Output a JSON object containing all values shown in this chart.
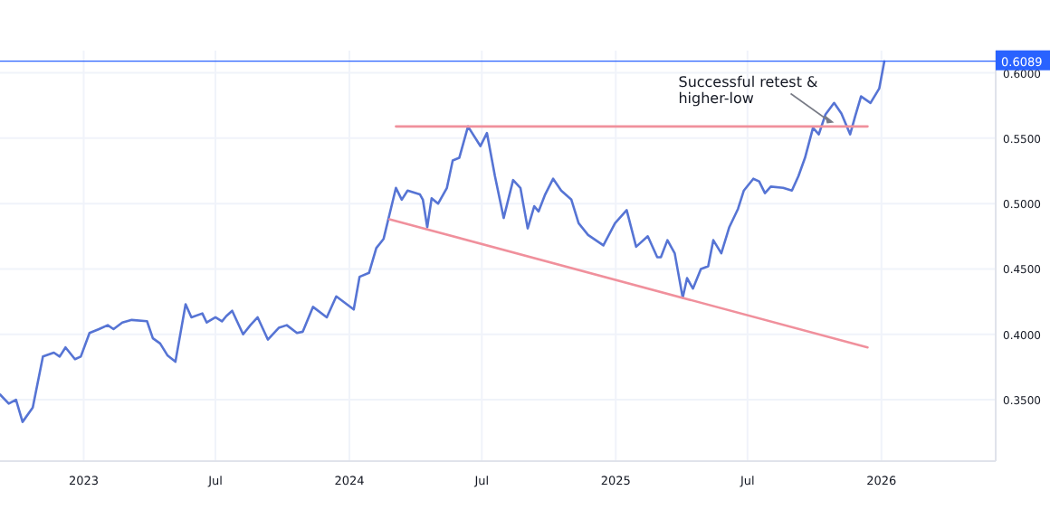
{
  "chart_data": {
    "type": "line",
    "x": [
      "2022-09-08",
      "2022-09-20",
      "2022-09-30",
      "2022-10-09",
      "2022-10-23",
      "2022-11-06",
      "2022-11-21",
      "2022-11-29",
      "2022-12-07",
      "2022-12-20",
      "2022-12-28",
      "2023-01-09",
      "2023-01-22",
      "2023-02-03",
      "2023-02-11",
      "2023-02-23",
      "2023-03-08",
      "2023-03-29",
      "2023-04-06",
      "2023-04-16",
      "2023-04-26",
      "2023-05-07",
      "2023-05-21",
      "2023-05-29",
      "2023-06-13",
      "2023-06-19",
      "2023-07-01",
      "2023-07-10",
      "2023-07-16",
      "2023-07-24",
      "2023-08-08",
      "2023-08-18",
      "2023-08-28",
      "2023-09-11",
      "2023-09-26",
      "2023-10-07",
      "2023-10-21",
      "2023-10-29",
      "2023-11-12",
      "2023-12-01",
      "2023-12-14",
      "2023-12-26",
      "2024-01-07",
      "2024-01-15",
      "2024-01-28",
      "2024-02-07",
      "2024-02-17",
      "2024-03-05",
      "2024-03-13",
      "2024-03-21",
      "2024-04-07",
      "2024-04-11",
      "2024-04-17",
      "2024-04-23",
      "2024-05-02",
      "2024-05-14",
      "2024-05-22",
      "2024-05-31",
      "2024-06-12",
      "2024-06-29",
      "2024-07-08",
      "2024-07-19",
      "2024-07-31",
      "2024-08-13",
      "2024-08-23",
      "2024-09-02",
      "2024-09-11",
      "2024-09-17",
      "2024-09-26",
      "2024-10-07",
      "2024-10-18",
      "2024-11-01",
      "2024-11-11",
      "2024-11-24",
      "2024-12-15",
      "2024-12-31",
      "2025-01-16",
      "2025-01-29",
      "2025-02-14",
      "2025-02-27",
      "2025-03-04",
      "2025-03-13",
      "2025-03-23",
      "2025-04-03",
      "2025-04-09",
      "2025-04-17",
      "2025-04-28",
      "2025-05-08",
      "2025-05-15",
      "2025-05-26",
      "2025-06-06",
      "2025-06-18",
      "2025-06-26",
      "2025-07-09",
      "2025-07-17",
      "2025-07-25",
      "2025-08-02",
      "2025-08-19",
      "2025-08-31",
      "2025-09-09",
      "2025-09-18",
      "2025-09-29",
      "2025-10-07",
      "2025-10-16",
      "2025-10-28",
      "2025-11-07",
      "2025-11-19",
      "2025-11-26",
      "2025-12-04",
      "2025-12-17",
      "2025-12-29",
      "2026-01-05"
    ],
    "series": [
      {
        "color": "#5674d4",
        "values": [
          0.354,
          0.347,
          0.35,
          0.333,
          0.344,
          0.383,
          0.386,
          0.383,
          0.39,
          0.381,
          0.383,
          0.401,
          0.404,
          0.407,
          0.404,
          0.409,
          0.411,
          0.41,
          0.397,
          0.393,
          0.384,
          0.379,
          0.423,
          0.413,
          0.416,
          0.409,
          0.413,
          0.41,
          0.414,
          0.418,
          0.4,
          0.407,
          0.413,
          0.396,
          0.405,
          0.407,
          0.401,
          0.402,
          0.421,
          0.413,
          0.429,
          0.424,
          0.419,
          0.444,
          0.447,
          0.466,
          0.473,
          0.512,
          0.503,
          0.51,
          0.507,
          0.503,
          0.482,
          0.504,
          0.5,
          0.512,
          0.533,
          0.535,
          0.559,
          0.544,
          0.554,
          0.521,
          0.489,
          0.518,
          0.512,
          0.481,
          0.498,
          0.494,
          0.507,
          0.519,
          0.51,
          0.503,
          0.485,
          0.476,
          0.468,
          0.485,
          0.495,
          0.467,
          0.475,
          0.459,
          0.459,
          0.472,
          0.462,
          0.428,
          0.443,
          0.435,
          0.45,
          0.452,
          0.472,
          0.462,
          0.482,
          0.496,
          0.51,
          0.519,
          0.517,
          0.508,
          0.513,
          0.512,
          0.51,
          0.521,
          0.535,
          0.558,
          0.553,
          0.568,
          0.577,
          0.569,
          0.553,
          0.567,
          0.582,
          0.577,
          0.588,
          0.6089
        ]
      },
      {
        "color": "#f0909c",
        "x": [
          "2024-03-05",
          "2025-12-13"
        ],
        "values": [
          0.559,
          0.559
        ]
      },
      {
        "color": "#f0909c",
        "x": [
          "2024-02-25",
          "2025-12-13"
        ],
        "values": [
          0.488,
          0.39
        ]
      }
    ],
    "xlim": [
      "2022-09-08",
      "2026-06-07"
    ],
    "xticks": [
      {
        "value": "2023-01-01",
        "label": "2023"
      },
      {
        "value": "2023-07-01",
        "label": "Jul"
      },
      {
        "value": "2024-01-01",
        "label": "2024"
      },
      {
        "value": "2024-07-01",
        "label": "Jul"
      },
      {
        "value": "2025-01-01",
        "label": "2025"
      },
      {
        "value": "2025-07-01",
        "label": "Jul"
      },
      {
        "value": "2026-01-01",
        "label": "2026"
      }
    ],
    "ylim": [
      0.303,
      0.617
    ],
    "yticks": [
      {
        "value": 0.35,
        "label": "0.3500"
      },
      {
        "value": 0.4,
        "label": "0.4000"
      },
      {
        "value": 0.45,
        "label": "0.4500"
      },
      {
        "value": 0.5,
        "label": "0.5000"
      },
      {
        "value": 0.55,
        "label": "0.5500"
      },
      {
        "value": 0.6,
        "label": "0.6000"
      }
    ],
    "ref_lines": [
      {
        "axis": "y",
        "value": 0.6089,
        "label": "0.6089",
        "color": "#2962ff"
      }
    ],
    "annotations": [
      {
        "text": "Successful retest &\nhigher-low",
        "x": "2025-10-28",
        "y": 0.562
      }
    ],
    "grid": true,
    "marker": "none",
    "line_style": "solid"
  }
}
